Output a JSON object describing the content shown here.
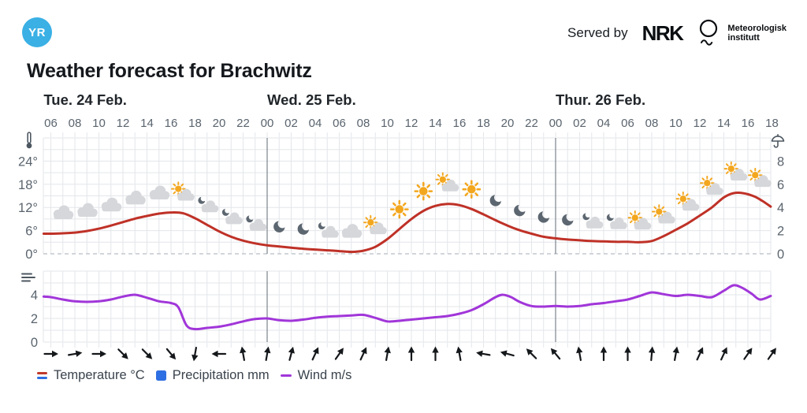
{
  "header": {
    "logo_text": "YR",
    "served_by_label": "Served by",
    "nrk_logo_text": "NRK",
    "met_logo_line1": "Meteorologisk",
    "met_logo_line2": "institutt"
  },
  "page_title": "Weather forecast for Brachwitz",
  "legend": {
    "temperature_label": "Temperature °C",
    "precipitation_label": "Precipitation mm",
    "wind_label": "Wind m/s"
  },
  "colors": {
    "temperature_line": "#bf3127",
    "wind_line": "#a136d9",
    "precipitation_swatch": "#2e6fe3",
    "legend_temp_warm": "#c0392b",
    "legend_temp_cold": "#2e6fe3",
    "logo_blue": "#3ab0e5",
    "grid": "#e3e6ea",
    "grid_zero_dash": "#b8bec5",
    "day_separator": "#7c848d",
    "axis_icon": "#4d5761",
    "sun": "#f3a71f",
    "cloud": "#d5d7db",
    "moon": "#5c6670",
    "arrow": "#15181b"
  },
  "chart_data": {
    "type": "line",
    "x_axis": {
      "unit": "hour",
      "start_hour": 5.4,
      "end_hour": 65.9,
      "tick_hours": [
        6,
        8,
        10,
        12,
        14,
        16,
        18,
        20,
        22,
        24,
        26,
        28,
        30,
        32,
        34,
        36,
        38,
        40,
        42,
        44,
        46,
        48,
        50,
        52,
        54,
        56,
        58,
        60,
        62,
        64,
        66
      ],
      "tick_labels": [
        "06",
        "08",
        "10",
        "12",
        "14",
        "16",
        "18",
        "20",
        "22",
        "00",
        "02",
        "04",
        "06",
        "08",
        "10",
        "12",
        "14",
        "16",
        "18",
        "20",
        "22",
        "00",
        "02",
        "04",
        "06",
        "08",
        "10",
        "12",
        "14",
        "16",
        "18"
      ],
      "day_labels": [
        {
          "text": "Tue. 24 Feb.",
          "hour": 5.4
        },
        {
          "text": "Wed. 25 Feb.",
          "hour": 24
        },
        {
          "text": "Thur. 26 Feb.",
          "hour": 48
        }
      ],
      "day_separator_hours": [
        24,
        48
      ]
    },
    "temperature": {
      "name": "Temperature °C",
      "color": "#bf3127",
      "ylim": [
        0,
        30
      ],
      "grid_step": 3,
      "yticks": [
        {
          "value": 24,
          "label": "24°"
        },
        {
          "value": 18,
          "label": "18°"
        },
        {
          "value": 12,
          "label": "12°"
        },
        {
          "value": 6,
          "label": "6°"
        },
        {
          "value": 0,
          "label": "0°"
        }
      ],
      "points": [
        [
          5.4,
          5.2
        ],
        [
          6,
          5.2
        ],
        [
          7,
          5.3
        ],
        [
          8,
          5.5
        ],
        [
          9,
          5.9
        ],
        [
          10,
          6.5
        ],
        [
          11,
          7.3
        ],
        [
          12,
          8.2
        ],
        [
          13,
          9.1
        ],
        [
          14,
          9.8
        ],
        [
          15,
          10.4
        ],
        [
          16,
          10.7
        ],
        [
          17,
          10.5
        ],
        [
          18,
          9.2
        ],
        [
          19,
          7.5
        ],
        [
          20,
          5.8
        ],
        [
          21,
          4.4
        ],
        [
          22,
          3.4
        ],
        [
          23,
          2.7
        ],
        [
          24,
          2.2
        ],
        [
          25,
          1.9
        ],
        [
          26,
          1.6
        ],
        [
          27,
          1.3
        ],
        [
          28,
          1.1
        ],
        [
          29,
          0.9
        ],
        [
          30,
          0.7
        ],
        [
          31,
          0.5
        ],
        [
          32,
          0.8
        ],
        [
          33,
          1.8
        ],
        [
          34,
          3.8
        ],
        [
          35,
          6.4
        ],
        [
          36,
          9.0
        ],
        [
          37,
          11.1
        ],
        [
          38,
          12.4
        ],
        [
          39,
          12.9
        ],
        [
          40,
          12.6
        ],
        [
          41,
          11.6
        ],
        [
          42,
          10.2
        ],
        [
          43,
          8.7
        ],
        [
          44,
          7.3
        ],
        [
          45,
          6.1
        ],
        [
          46,
          5.2
        ],
        [
          47,
          4.4
        ],
        [
          48,
          4.0
        ],
        [
          49,
          3.7
        ],
        [
          50,
          3.5
        ],
        [
          51,
          3.3
        ],
        [
          52,
          3.2
        ],
        [
          53,
          3.1
        ],
        [
          54,
          3.1
        ],
        [
          55,
          3.0
        ],
        [
          56,
          3.3
        ],
        [
          57,
          4.6
        ],
        [
          58,
          6.2
        ],
        [
          59,
          7.9
        ],
        [
          60,
          9.9
        ],
        [
          61,
          12.0
        ],
        [
          62,
          14.6
        ],
        [
          62.8,
          15.7
        ],
        [
          63.6,
          15.7
        ],
        [
          64.5,
          14.9
        ],
        [
          65.2,
          13.7
        ],
        [
          65.9,
          12.2
        ]
      ]
    },
    "precipitation_axis": {
      "name": "Precipitation mm",
      "ylim": [
        0,
        10
      ],
      "yticks": [
        {
          "value": 8,
          "label": "8"
        },
        {
          "value": 6,
          "label": "6"
        },
        {
          "value": 4,
          "label": "4"
        },
        {
          "value": 2,
          "label": "2"
        },
        {
          "value": 0,
          "label": "0"
        }
      ],
      "values": []
    },
    "wind": {
      "name": "Wind m/s",
      "color": "#a136d9",
      "ylim": [
        0,
        6
      ],
      "grid_step": 1,
      "yticks": [
        {
          "value": 4,
          "label": "4"
        },
        {
          "value": 2,
          "label": "2"
        },
        {
          "value": 0,
          "label": "0"
        }
      ],
      "points": [
        [
          5.4,
          3.85
        ],
        [
          6,
          3.8
        ],
        [
          7,
          3.6
        ],
        [
          8,
          3.45
        ],
        [
          9,
          3.4
        ],
        [
          10,
          3.45
        ],
        [
          11,
          3.6
        ],
        [
          12,
          3.85
        ],
        [
          13,
          4.0
        ],
        [
          14,
          3.75
        ],
        [
          15,
          3.45
        ],
        [
          16,
          3.3
        ],
        [
          16.6,
          2.95
        ],
        [
          17.3,
          1.4
        ],
        [
          18,
          1.1
        ],
        [
          19,
          1.2
        ],
        [
          20,
          1.3
        ],
        [
          21,
          1.5
        ],
        [
          22,
          1.75
        ],
        [
          23,
          1.95
        ],
        [
          24,
          2.0
        ],
        [
          25,
          1.85
        ],
        [
          26,
          1.8
        ],
        [
          27,
          1.9
        ],
        [
          28,
          2.05
        ],
        [
          29,
          2.15
        ],
        [
          30,
          2.2
        ],
        [
          31,
          2.25
        ],
        [
          32,
          2.3
        ],
        [
          33,
          2.05
        ],
        [
          34,
          1.75
        ],
        [
          35,
          1.8
        ],
        [
          36,
          1.9
        ],
        [
          37,
          2.0
        ],
        [
          38,
          2.1
        ],
        [
          39,
          2.2
        ],
        [
          40,
          2.4
        ],
        [
          41,
          2.7
        ],
        [
          42,
          3.2
        ],
        [
          43,
          3.8
        ],
        [
          43.6,
          4.0
        ],
        [
          44.3,
          3.8
        ],
        [
          45,
          3.4
        ],
        [
          46,
          3.05
        ],
        [
          47,
          3.0
        ],
        [
          48,
          3.05
        ],
        [
          49,
          3.0
        ],
        [
          50,
          3.05
        ],
        [
          51,
          3.2
        ],
        [
          52,
          3.3
        ],
        [
          53,
          3.45
        ],
        [
          54,
          3.6
        ],
        [
          55,
          3.9
        ],
        [
          56,
          4.2
        ],
        [
          57,
          4.05
        ],
        [
          58,
          3.9
        ],
        [
          59,
          4.0
        ],
        [
          60,
          3.9
        ],
        [
          61,
          3.8
        ],
        [
          62,
          4.35
        ],
        [
          62.8,
          4.8
        ],
        [
          63.5,
          4.6
        ],
        [
          64.3,
          4.1
        ],
        [
          65,
          3.6
        ],
        [
          65.9,
          3.9
        ]
      ],
      "arrows_deg_from_north": [
        [
          6,
          90
        ],
        [
          8,
          80
        ],
        [
          10,
          90
        ],
        [
          12,
          135
        ],
        [
          14,
          135
        ],
        [
          16,
          140
        ],
        [
          18,
          190
        ],
        [
          20,
          270
        ],
        [
          22,
          350
        ],
        [
          24,
          10
        ],
        [
          26,
          15
        ],
        [
          28,
          25
        ],
        [
          30,
          35
        ],
        [
          32,
          25
        ],
        [
          34,
          10
        ],
        [
          36,
          0
        ],
        [
          38,
          0
        ],
        [
          40,
          350
        ],
        [
          42,
          280
        ],
        [
          44,
          285
        ],
        [
          46,
          315
        ],
        [
          48,
          320
        ],
        [
          50,
          350
        ],
        [
          52,
          0
        ],
        [
          54,
          0
        ],
        [
          56,
          5
        ],
        [
          58,
          10
        ],
        [
          60,
          25
        ],
        [
          62,
          25
        ],
        [
          64,
          35
        ],
        [
          66,
          35
        ]
      ]
    },
    "weather_icons": [
      [
        7,
        "cloudy"
      ],
      [
        9,
        "cloudy"
      ],
      [
        11,
        "cloudy"
      ],
      [
        13,
        "cloudy"
      ],
      [
        15,
        "cloudy"
      ],
      [
        17,
        "partly-sunny"
      ],
      [
        19,
        "night-cloudy"
      ],
      [
        21,
        "night-cloudy"
      ],
      [
        23,
        "night-cloudy"
      ],
      [
        25,
        "clear-night"
      ],
      [
        27,
        "clear-night"
      ],
      [
        29,
        "night-cloudy"
      ],
      [
        31,
        "cloudy"
      ],
      [
        33,
        "partly-sunny"
      ],
      [
        35,
        "sunny"
      ],
      [
        37,
        "sunny"
      ],
      [
        39,
        "partly-sunny"
      ],
      [
        41,
        "sunny"
      ],
      [
        43,
        "clear-night"
      ],
      [
        45,
        "clear-night"
      ],
      [
        47,
        "clear-night"
      ],
      [
        49,
        "clear-night"
      ],
      [
        51,
        "night-cloudy"
      ],
      [
        53,
        "night-cloudy"
      ],
      [
        55,
        "partly-sunny"
      ],
      [
        57,
        "partly-sunny"
      ],
      [
        59,
        "partly-sunny"
      ],
      [
        61,
        "partly-sunny"
      ],
      [
        63,
        "partly-sunny"
      ],
      [
        65,
        "partly-sunny"
      ]
    ]
  }
}
